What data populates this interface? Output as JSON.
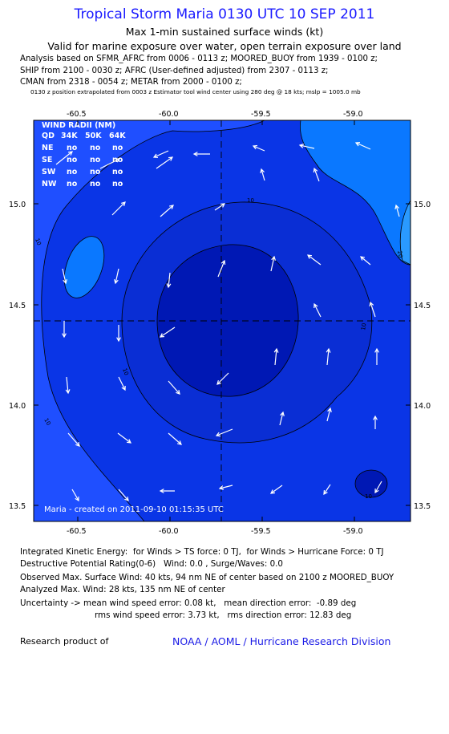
{
  "title": "Tropical Storm Maria 0130 UTC 10 SEP 2011",
  "subtitle_1": "Max 1-min sustained surface winds (kt)",
  "subtitle_2": "Valid for marine exposure over water, open terrain exposure over land",
  "analysis_lines": [
    "Analysis based on SFMR_AFRC from 0006 - 0113 z; MOORED_BUOY from 1939 - 0100 z;",
    "SHIP from 2100 - 0030 z; AFRC (User-defined adjusted) from 2307 - 0113 z;",
    "CMAN from 2318 - 0054 z; METAR from 2000 - 0100 z;"
  ],
  "position_note": "0130 z position extrapolated from 0003 z Estimator tool wind center using 280 deg @ 18 kts; mslp = 1005.0 mb",
  "map": {
    "lon_ticks": [
      "-60.5",
      "-60.0",
      "-59.5",
      "-59.0"
    ],
    "lat_ticks": [
      "15.0",
      "14.5",
      "14.0",
      "13.5"
    ],
    "lon_range": [
      -60.74,
      -58.76
    ],
    "lat_range": [
      13.42,
      15.42
    ],
    "center": {
      "lon": -59.7,
      "lat": 14.42
    },
    "contour_labels": [
      "10",
      "10",
      "10",
      "10",
      "10",
      "10",
      "20"
    ],
    "created_text": "Maria  -  created on 2011-09-10 01:15:35 UTC",
    "colors": {
      "band_0_10": "#1f4fff",
      "band_10_15": "#0a35e6",
      "band_15_20": "#0020c8",
      "band_20_25": "#0a78ff",
      "core": "#0018b4"
    }
  },
  "wind_radii": {
    "title": "WIND RADII (NM)",
    "columns": [
      "QD",
      "34K",
      "50K",
      "64K"
    ],
    "rows": [
      {
        "qd": "NE",
        "r34": "no",
        "r50": "no",
        "r64": "no"
      },
      {
        "qd": "SE",
        "r34": "no",
        "r50": "no",
        "r64": "no"
      },
      {
        "qd": "SW",
        "r34": "no",
        "r50": "no",
        "r64": "no"
      },
      {
        "qd": "NW",
        "r34": "no",
        "r50": "no",
        "r64": "no"
      }
    ]
  },
  "stats": {
    "ike": "Integrated Kinetic Energy:  for Winds > TS force: 0 TJ,  for Winds > Hurricane Force: 0 TJ",
    "dpr": "Destructive Potential Rating(0-6)   Wind: 0.0 , Surge/Waves: 0.0",
    "obs_max": "Observed Max. Surface Wind: 40 kts, 94 nm NE of center based on 2100 z MOORED_BUOY",
    "analyzed_max": "Analyzed Max. Wind: 28 kts, 135 nm NE of center",
    "uncertainty_1": "Uncertainty -> mean wind speed error: 0.08 kt,   mean direction error:  -0.89 deg",
    "uncertainty_2": "rms wind speed error: 3.73 kt,   rms direction error: 12.83 deg"
  },
  "footer": {
    "research": "Research product of",
    "org": "NOAA / AOML / Hurricane Research Division"
  }
}
